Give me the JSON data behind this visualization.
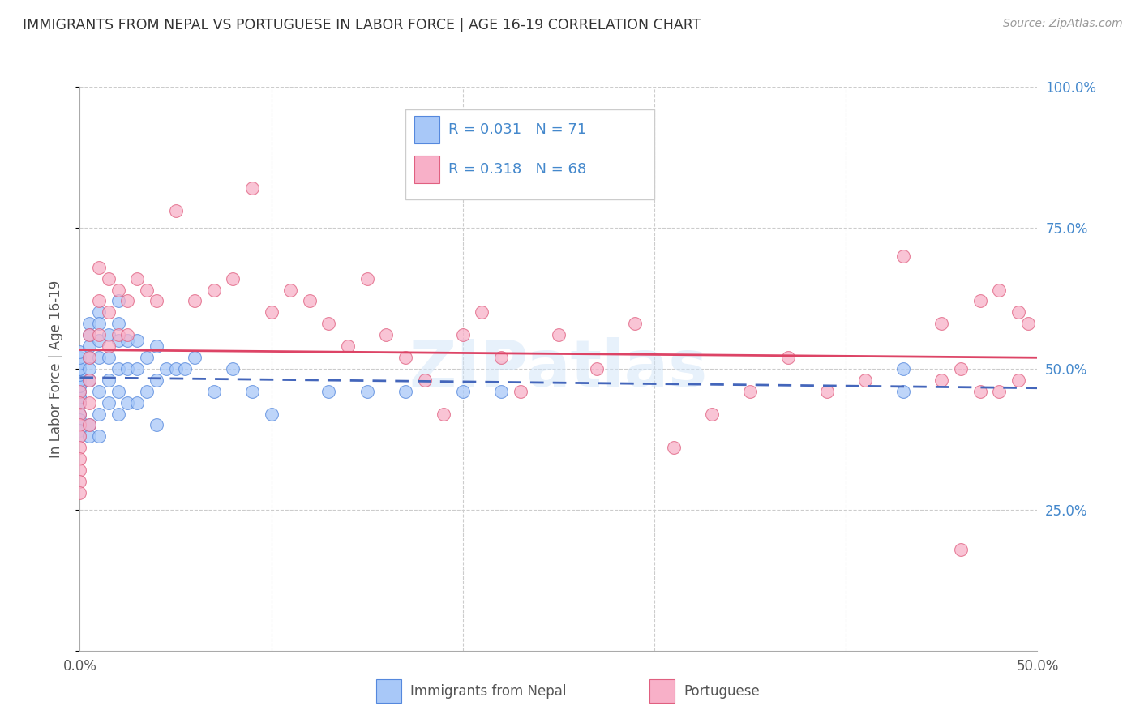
{
  "title": "IMMIGRANTS FROM NEPAL VS PORTUGUESE IN LABOR FORCE | AGE 16-19 CORRELATION CHART",
  "source": "Source: ZipAtlas.com",
  "ylabel": "In Labor Force | Age 16-19",
  "xlim": [
    0.0,
    0.5
  ],
  "ylim": [
    0.0,
    1.0
  ],
  "xtick_positions": [
    0.0,
    0.1,
    0.2,
    0.3,
    0.4,
    0.5
  ],
  "xticklabels": [
    "0.0%",
    "",
    "",
    "",
    "",
    "50.0%"
  ],
  "ytick_positions": [
    0.0,
    0.25,
    0.5,
    0.75,
    1.0
  ],
  "yticklabels_right": [
    "",
    "25.0%",
    "50.0%",
    "75.0%",
    "100.0%"
  ],
  "nepal_color": "#a8c8f8",
  "portuguese_color": "#f8b0c8",
  "nepal_edge_color": "#5588dd",
  "portuguese_edge_color": "#e06080",
  "nepal_line_color": "#4466bb",
  "portuguese_line_color": "#dd4466",
  "watermark": "ZIPatlas",
  "nepal_x": [
    0.0,
    0.0,
    0.0,
    0.0,
    0.0,
    0.0,
    0.0,
    0.0,
    0.0,
    0.0,
    0.0,
    0.0,
    0.0,
    0.0,
    0.0,
    0.0,
    0.0,
    0.0,
    0.0,
    0.0,
    0.005,
    0.005,
    0.005,
    0.005,
    0.005,
    0.005,
    0.005,
    0.005,
    0.01,
    0.01,
    0.01,
    0.01,
    0.01,
    0.01,
    0.01,
    0.015,
    0.015,
    0.015,
    0.015,
    0.02,
    0.02,
    0.02,
    0.02,
    0.02,
    0.02,
    0.025,
    0.025,
    0.025,
    0.03,
    0.03,
    0.03,
    0.035,
    0.035,
    0.04,
    0.04,
    0.04,
    0.045,
    0.05,
    0.055,
    0.06,
    0.07,
    0.08,
    0.09,
    0.1,
    0.13,
    0.15,
    0.17,
    0.2,
    0.22,
    0.43,
    0.43
  ],
  "nepal_y": [
    0.44,
    0.44,
    0.45,
    0.45,
    0.46,
    0.47,
    0.47,
    0.48,
    0.48,
    0.49,
    0.5,
    0.5,
    0.51,
    0.52,
    0.53,
    0.42,
    0.41,
    0.4,
    0.39,
    0.38,
    0.58,
    0.56,
    0.54,
    0.52,
    0.5,
    0.48,
    0.4,
    0.38,
    0.6,
    0.58,
    0.55,
    0.52,
    0.46,
    0.42,
    0.38,
    0.56,
    0.52,
    0.48,
    0.44,
    0.62,
    0.58,
    0.55,
    0.5,
    0.46,
    0.42,
    0.55,
    0.5,
    0.44,
    0.55,
    0.5,
    0.44,
    0.52,
    0.46,
    0.54,
    0.48,
    0.4,
    0.5,
    0.5,
    0.5,
    0.52,
    0.46,
    0.5,
    0.46,
    0.42,
    0.46,
    0.46,
    0.46,
    0.46,
    0.46,
    0.5,
    0.46
  ],
  "portuguese_x": [
    0.0,
    0.0,
    0.0,
    0.0,
    0.0,
    0.0,
    0.0,
    0.0,
    0.0,
    0.0,
    0.005,
    0.005,
    0.005,
    0.005,
    0.005,
    0.01,
    0.01,
    0.01,
    0.015,
    0.015,
    0.015,
    0.02,
    0.02,
    0.025,
    0.025,
    0.03,
    0.035,
    0.04,
    0.05,
    0.06,
    0.07,
    0.08,
    0.09,
    0.1,
    0.11,
    0.12,
    0.13,
    0.14,
    0.15,
    0.16,
    0.17,
    0.18,
    0.19,
    0.2,
    0.21,
    0.22,
    0.23,
    0.25,
    0.27,
    0.29,
    0.31,
    0.33,
    0.35,
    0.37,
    0.39,
    0.41,
    0.43,
    0.45,
    0.46,
    0.47,
    0.48,
    0.49,
    0.495,
    0.49,
    0.48,
    0.47,
    0.46,
    0.45
  ],
  "portuguese_y": [
    0.46,
    0.44,
    0.42,
    0.4,
    0.38,
    0.36,
    0.34,
    0.32,
    0.3,
    0.28,
    0.56,
    0.52,
    0.48,
    0.44,
    0.4,
    0.68,
    0.62,
    0.56,
    0.66,
    0.6,
    0.54,
    0.64,
    0.56,
    0.62,
    0.56,
    0.66,
    0.64,
    0.62,
    0.78,
    0.62,
    0.64,
    0.66,
    0.82,
    0.6,
    0.64,
    0.62,
    0.58,
    0.54,
    0.66,
    0.56,
    0.52,
    0.48,
    0.42,
    0.56,
    0.6,
    0.52,
    0.46,
    0.56,
    0.5,
    0.58,
    0.36,
    0.42,
    0.46,
    0.52,
    0.46,
    0.48,
    0.7,
    0.48,
    0.5,
    0.46,
    0.64,
    0.6,
    0.58,
    0.48,
    0.46,
    0.62,
    0.18,
    0.58
  ]
}
